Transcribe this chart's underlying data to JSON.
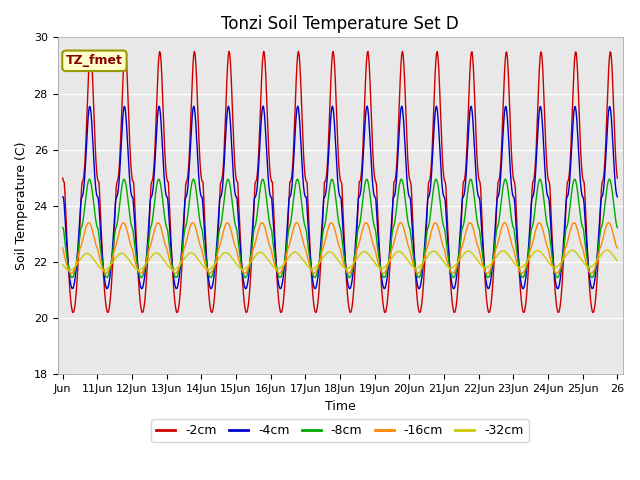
{
  "title": "Tonzi Soil Temperature Set D",
  "xlabel": "Time",
  "ylabel": "Soil Temperature (C)",
  "ylim": [
    18,
    30
  ],
  "background_color": "#e8e8e8",
  "series_colors": [
    "#cc0000",
    "#0000cc",
    "#00aa00",
    "#ff8800",
    "#cccc00"
  ],
  "series_labels": [
    "-2cm",
    "-4cm",
    "-8cm",
    "-16cm",
    "-32cm"
  ],
  "xtick_labels": [
    "Jun",
    "11Jun",
    "12Jun",
    "13Jun",
    "14Jun",
    "15Jun",
    "16Jun",
    "17Jun",
    "18Jun",
    "19Jun",
    "20Jun",
    "21Jun",
    "22Jun",
    "23Jun",
    "24Jun",
    "25Jun",
    "26"
  ],
  "legend_label": "TZ_fmet",
  "title_fontsize": 12,
  "axis_fontsize": 9,
  "tick_fontsize": 8,
  "legend_label_fontsize": 9
}
